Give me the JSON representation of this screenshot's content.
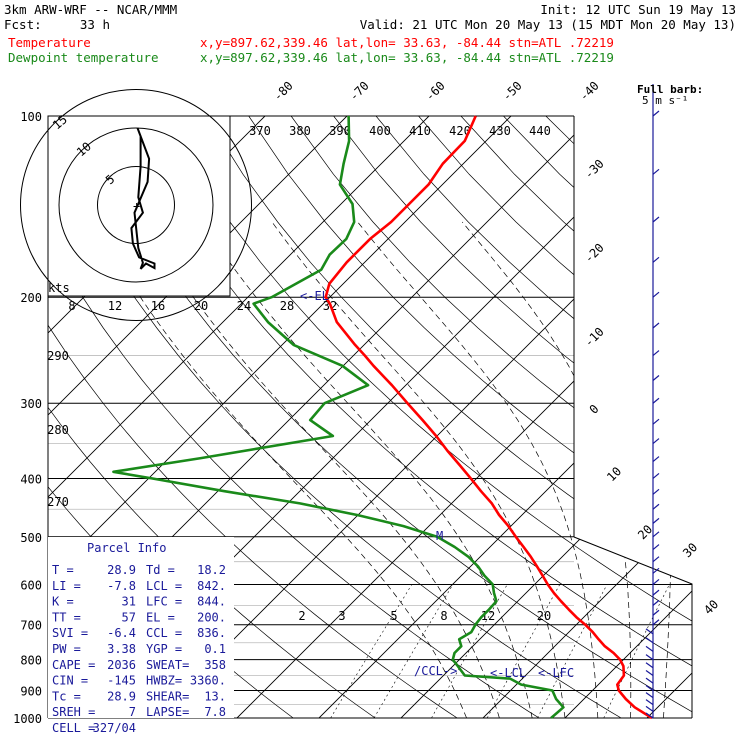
{
  "header": {
    "model": "3km ARW-WRF -- NCAR/MMM",
    "init": "Init: 12 UTC Sun 19 May 13",
    "fcst_label": "Fcst:",
    "fcst_value": "33 h",
    "valid": "Valid: 21 UTC Mon 20 May 13 (15 MDT Mon 20 May 13)",
    "temp_name": "Temperature",
    "temp_info": "x,y=897.62,339.46   lat,lon= 33.63, -84.44  stn=ATL .72219",
    "dew_name": "Dewpoint temperature",
    "dew_info": "x,y=897.62,339.46   lat,lon= 33.63, -84.44  stn=ATL .72219"
  },
  "colors": {
    "temperature": "#ff0000",
    "dewpoint": "#1a8a1a",
    "annotation": "#1a1a9a",
    "grid": "#000000"
  },
  "full_barb": {
    "line1": "Full barb:",
    "line2": "5 m s⁻¹"
  },
  "hodograph": {
    "ring_labels": [
      "5",
      "10",
      "15"
    ],
    "units_label": "kts",
    "points": [
      [
        0.6,
        -9
      ],
      [
        0.6,
        -5
      ],
      [
        0.3,
        -1
      ],
      [
        0.9,
        1
      ],
      [
        -0.6,
        3
      ],
      [
        -0.4,
        5
      ],
      [
        0.4,
        6.8
      ],
      [
        2.4,
        7.6
      ],
      [
        2.4,
        8.2
      ],
      [
        1.3,
        7.6
      ],
      [
        0.6,
        8.3
      ],
      [
        0.9,
        7.5
      ],
      [
        0.3,
        5.6
      ],
      [
        -0.2,
        1
      ],
      [
        1.5,
        -3
      ],
      [
        1.7,
        -6
      ],
      [
        0.2,
        -10
      ]
    ]
  },
  "parcel_info": {
    "title": "Parcel Info",
    "rows": [
      [
        "T  =",
        "28.9",
        "Td =",
        "18.2"
      ],
      [
        "LI =",
        "-7.8",
        "LCL =",
        "842."
      ],
      [
        "K  =",
        "31",
        "LFC =",
        "844."
      ],
      [
        "TT =",
        "57",
        "EL =",
        "200."
      ],
      [
        "SVI =",
        "-6.4",
        "CCL =",
        "836."
      ],
      [
        "PW =",
        "3.38",
        "YGP =",
        "0.1"
      ],
      [
        "CAPE =",
        "2036",
        "SWEAT=",
        "358"
      ],
      [
        "CIN =",
        "-145",
        "HWBZ=",
        "3360."
      ],
      [
        "Tc =",
        "28.9",
        "SHEAR=",
        "13."
      ],
      [
        "SREH =",
        "7",
        "LAPSE=",
        "7.8"
      ],
      [
        "CELL =",
        "327/04",
        "",
        ""
      ]
    ]
  },
  "annotations": {
    "el": "<-EL",
    "ccl": "/CCL->",
    "lcl": "<-LCL",
    "lfc": "<-LFC",
    "m": "M"
  },
  "chart_data": {
    "type": "skew-t",
    "y_axis": "pressure (hPa), log scale",
    "pressure_labels": [
      100,
      200,
      300,
      400,
      500,
      600,
      700,
      800,
      900,
      1000
    ],
    "isotherm_labels": [
      -80,
      -70,
      -60,
      -50,
      -40,
      -30,
      -20,
      -10,
      0,
      10,
      20,
      30,
      40
    ],
    "theta_labels": [
      370,
      380,
      390,
      400,
      410,
      420,
      430,
      440
    ],
    "theta_labels_left": [
      290,
      280,
      270
    ],
    "mixing_ratio_labels_upper": [
      8,
      12,
      16,
      20,
      24,
      28,
      32
    ],
    "mixing_ratio_labels_lower": [
      2,
      3,
      5,
      8,
      12,
      20
    ],
    "series": [
      {
        "name": "Temperature",
        "pressure": [
          1000,
          960,
          930,
          900,
          880,
          850,
          820,
          800,
          780,
          760,
          740,
          720,
          700,
          680,
          660,
          640,
          620,
          600,
          580,
          560,
          540,
          520,
          500,
          480,
          460,
          440,
          420,
          400,
          380,
          360,
          340,
          320,
          300,
          280,
          260,
          250,
          240,
          220,
          205,
          200,
          190,
          175,
          160,
          150,
          140,
          130,
          120,
          110,
          100
        ],
        "temp": [
          30.6,
          27.2,
          25.1,
          23.2,
          22.3,
          22.0,
          20.8,
          19.6,
          18.0,
          16.1,
          14.5,
          12.9,
          11.1,
          9.1,
          7.2,
          5.3,
          3.4,
          1.6,
          -0.1,
          -1.9,
          -3.8,
          -5.9,
          -8.1,
          -10.3,
          -12.8,
          -15.1,
          -17.9,
          -20.7,
          -23.7,
          -26.9,
          -30.1,
          -33.7,
          -37.6,
          -41.7,
          -46.3,
          -48.6,
          -51.1,
          -56.1,
          -59.2,
          -60.5,
          -61.7,
          -62.2,
          -62.2,
          -61.7,
          -61.7,
          -61.7,
          -62.5,
          -62.6,
          -64.3
        ]
      },
      {
        "name": "Dewpoint temperature",
        "pressure": [
          1000,
          960,
          930,
          900,
          880,
          860,
          850,
          820,
          800,
          780,
          760,
          740,
          720,
          700,
          680,
          660,
          640,
          620,
          600,
          580,
          560,
          540,
          520,
          500,
          480,
          460,
          440,
          420,
          400,
          390,
          370,
          340,
          320,
          300,
          280,
          260,
          240,
          220,
          205,
          200,
          180,
          170,
          160,
          150,
          140,
          130,
          120,
          110,
          100
        ],
        "temp": [
          18.3,
          18.5,
          16.6,
          15.1,
          10.6,
          8.5,
          2.6,
          0.6,
          -0.8,
          -1.4,
          -1.4,
          -2.5,
          -1.9,
          -2.3,
          -2.5,
          -2.5,
          -2.6,
          -3.9,
          -5.1,
          -7.2,
          -9.1,
          -11.4,
          -14.3,
          -17.7,
          -23.1,
          -30.1,
          -38.5,
          -49.2,
          -59.6,
          -65.1,
          -56.1,
          -42.7,
          -47.4,
          -47.7,
          -44.6,
          -50.1,
          -58.6,
          -64.5,
          -68.5,
          -67.1,
          -64.4,
          -65.2,
          -65.1,
          -66.2,
          -68.6,
          -72.5,
          -74.6,
          -76.7,
          -79.8
        ]
      }
    ]
  }
}
